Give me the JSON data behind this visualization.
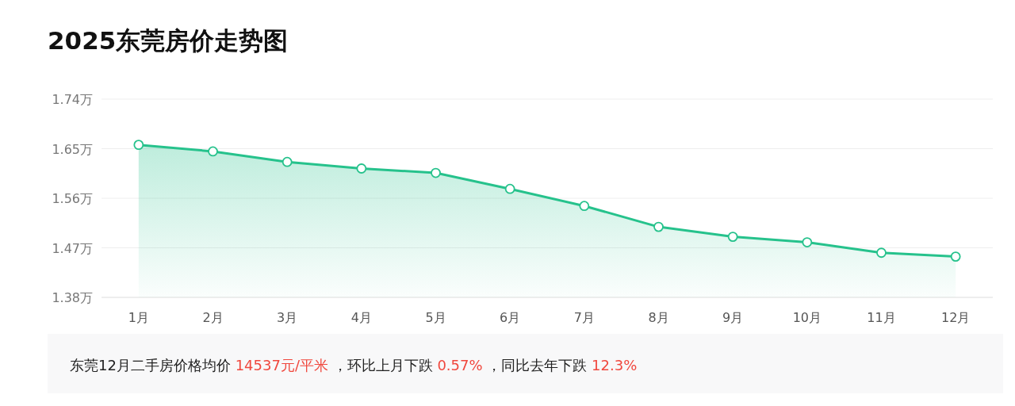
{
  "chart_data": {
    "type": "area",
    "title": "2025东莞房价走势图",
    "categories": [
      "1月",
      "2月",
      "3月",
      "4月",
      "5月",
      "6月",
      "7月",
      "8月",
      "9月",
      "10月",
      "11月",
      "12月"
    ],
    "series": [
      {
        "color": "#26c28c",
        "values": [
          1.657,
          1.645,
          1.626,
          1.614,
          1.606,
          1.577,
          1.546,
          1.508,
          1.49,
          1.48,
          1.461,
          1.454
        ]
      }
    ],
    "ylim": [
      1.38,
      1.74
    ],
    "yticks": [
      {
        "value": 1.38,
        "label": "1.38万"
      },
      {
        "value": 1.47,
        "label": "1.47万"
      },
      {
        "value": 1.56,
        "label": "1.56万"
      },
      {
        "value": 1.65,
        "label": "1.65万"
      },
      {
        "value": 1.74,
        "label": "1.74万"
      }
    ],
    "grid": "y",
    "marker": "circle",
    "annotations": [
      "东莞12月二手房价格均价",
      "14537元/平米",
      "，环比上月下跌",
      "0.57%",
      "，同比去年下跌",
      "12.3%"
    ]
  }
}
